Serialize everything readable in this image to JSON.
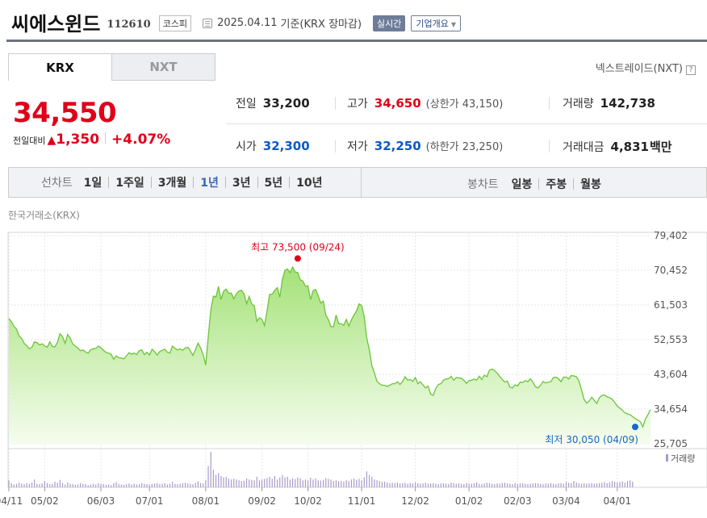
{
  "header": {
    "stock_name": "씨에스윈드",
    "stock_code": "112610",
    "market": "코스피",
    "date": "2025.04.11",
    "basis": "기준(KRX 장마감)",
    "realtime_label": "실시간",
    "company_label": "기업개요"
  },
  "tabs": [
    {
      "label": "KRX"
    },
    {
      "label": "NXT"
    }
  ],
  "nextrade_label": "넥스트레이드(NXT)",
  "quote": {
    "price": "34,550",
    "change_label": "전일대비",
    "change_amount": "1,350",
    "change_pct": "+4.07%",
    "prev_close_label": "전일",
    "prev_close": "33,200",
    "high_label": "고가",
    "high": "34,650",
    "upper_limit_label": "(상한가 43,150)",
    "volume_label": "거래량",
    "volume": "142,738",
    "open_label": "시가",
    "open": "32,300",
    "low_label": "저가",
    "low": "32,250",
    "lower_limit_label": "(하한가 23,250)",
    "amount_label": "거래대금",
    "amount": "4,831",
    "amount_unit": "백만"
  },
  "period_bar": {
    "line_label": "선차트",
    "periods": [
      "1일",
      "1주일",
      "3개월",
      "1년",
      "3년",
      "5년",
      "10년"
    ],
    "selected": "1년",
    "candle_label": "봉차트",
    "candles": [
      "일봉",
      "주봉",
      "월봉"
    ]
  },
  "chart_source": "한국거래소(KRX)",
  "chart_data": {
    "type": "area",
    "ylim": [
      25705,
      79402
    ],
    "y_ticks": [
      "79,402",
      "70,452",
      "61,503",
      "52,553",
      "43,604",
      "34,654",
      "25,705"
    ],
    "x_ticks": [
      {
        "label": "04/11",
        "i": 0
      },
      {
        "label": "05/02",
        "i": 14
      },
      {
        "label": "06/03",
        "i": 36
      },
      {
        "label": "07/01",
        "i": 55
      },
      {
        "label": "08/01",
        "i": 77
      },
      {
        "label": "09/02",
        "i": 99
      },
      {
        "label": "10/02",
        "i": 117
      },
      {
        "label": "11/01",
        "i": 138
      },
      {
        "label": "12/02",
        "i": 159
      },
      {
        "label": "01/02",
        "i": 180
      },
      {
        "label": "02/03",
        "i": 199
      },
      {
        "label": "03/04",
        "i": 218
      },
      {
        "label": "04/01",
        "i": 238
      }
    ],
    "prices": [
      58000,
      57200,
      56000,
      55300,
      53500,
      52900,
      51600,
      51000,
      50200,
      50600,
      52000,
      51800,
      51200,
      51500,
      51000,
      50600,
      52000,
      50800,
      50700,
      51900,
      54100,
      53300,
      51600,
      53900,
      53000,
      51400,
      50900,
      50400,
      49700,
      49900,
      49400,
      49100,
      50000,
      50200,
      50300,
      50900,
      50500,
      49800,
      49300,
      49100,
      48800,
      47500,
      48400,
      47900,
      47800,
      47600,
      48400,
      49200,
      48800,
      49100,
      48700,
      49700,
      49900,
      48700,
      49300,
      48600,
      50100,
      49500,
      48600,
      49500,
      49800,
      50100,
      49300,
      49100,
      50900,
      50300,
      49900,
      50200,
      49800,
      50400,
      50600,
      49700,
      48500,
      50000,
      51700,
      50400,
      48700,
      46000,
      53500,
      60200,
      63800,
      63600,
      66300,
      62900,
      65100,
      65600,
      64500,
      64600,
      63100,
      64400,
      65100,
      65300,
      64400,
      61800,
      63700,
      61800,
      61300,
      57300,
      58200,
      57800,
      56200,
      60000,
      64300,
      64300,
      65300,
      66000,
      63500,
      68100,
      70500,
      70800,
      69800,
      71300,
      70000,
      69900,
      68000,
      67700,
      66400,
      66400,
      62900,
      65200,
      65500,
      63900,
      62000,
      62500,
      58900,
      57700,
      55900,
      55900,
      58900,
      56700,
      56700,
      56300,
      57800,
      56100,
      57700,
      58900,
      60000,
      61800,
      61400,
      58500,
      53000,
      50000,
      45800,
      44000,
      41800,
      41200,
      40800,
      40800,
      40500,
      40800,
      41200,
      41200,
      41700,
      41000,
      41800,
      43000,
      42100,
      42300,
      41800,
      42800,
      41200,
      41700,
      40900,
      40100,
      40600,
      38500,
      38200,
      40000,
      41000,
      41200,
      42100,
      42400,
      42500,
      43100,
      42100,
      42800,
      42700,
      42600,
      42100,
      41300,
      42000,
      42100,
      42400,
      42100,
      43100,
      42300,
      43400,
      43000,
      44700,
      45000,
      44600,
      43900,
      43100,
      42300,
      41600,
      41900,
      40300,
      40100,
      40900,
      40600,
      41600,
      41500,
      42000,
      41700,
      42500,
      41600,
      40400,
      40100,
      40800,
      41800,
      41400,
      41600,
      41700,
      42800,
      42900,
      42500,
      41700,
      42900,
      42900,
      42400,
      43300,
      43200,
      43000,
      41900,
      39600,
      37200,
      36200,
      36700,
      37700,
      36900,
      36100,
      37600,
      38200,
      38300,
      37800,
      37600,
      37200,
      36400,
      35400,
      34900,
      34300,
      33700,
      33400,
      33200,
      32700,
      32200,
      31800,
      31400,
      30050,
      32100,
      33200,
      34550
    ],
    "high_marker": {
      "label": "최고 73,500 (09/24)",
      "value": 73500,
      "i": 113
    },
    "low_marker": {
      "label": "최저 30,050 (04/09)",
      "value": 30050,
      "i": 245
    },
    "volume_label": "거래량",
    "volumes": [
      0.2,
      0.12,
      0.08,
      0.1,
      0.13,
      0.11,
      0.09,
      0.12,
      0.1,
      0.14,
      0.22,
      0.1,
      0.09,
      0.11,
      0.18,
      0.12,
      0.09,
      0.1,
      0.16,
      0.13,
      0.21,
      0.12,
      0.08,
      0.14,
      0.1,
      0.09,
      0.07,
      0.08,
      0.12,
      0.1,
      0.09,
      0.06,
      0.08,
      0.1,
      0.08,
      0.12,
      0.1,
      0.09,
      0.07,
      0.08,
      0.06,
      0.12,
      0.15,
      0.1,
      0.08,
      0.07,
      0.09,
      0.11,
      0.08,
      0.1,
      0.08,
      0.09,
      0.12,
      0.1,
      0.09,
      0.08,
      0.1,
      0.11,
      0.12,
      0.09,
      0.1,
      0.12,
      0.08,
      0.1,
      0.16,
      0.1,
      0.09,
      0.1,
      0.12,
      0.13,
      0.11,
      0.1,
      0.09,
      0.13,
      0.17,
      0.12,
      0.11,
      0.2,
      0.6,
      1.0,
      0.5,
      0.35,
      0.4,
      0.32,
      0.28,
      0.3,
      0.25,
      0.22,
      0.24,
      0.22,
      0.2,
      0.18,
      0.19,
      0.25,
      0.22,
      0.21,
      0.2,
      0.3,
      0.2,
      0.22,
      0.24,
      0.26,
      0.3,
      0.24,
      0.32,
      0.22,
      0.28,
      0.35,
      0.28,
      0.3,
      0.22,
      0.26,
      0.23,
      0.28,
      0.25,
      0.2,
      0.22,
      0.2,
      0.27,
      0.22,
      0.25,
      0.2,
      0.19,
      0.21,
      0.26,
      0.24,
      0.22,
      0.18,
      0.2,
      0.17,
      0.18,
      0.16,
      0.2,
      0.18,
      0.22,
      0.25,
      0.21,
      0.24,
      0.2,
      0.28,
      0.45,
      0.35,
      0.3,
      0.22,
      0.2,
      0.18,
      0.15,
      0.16,
      0.14,
      0.12,
      0.13,
      0.12,
      0.14,
      0.11,
      0.12,
      0.13,
      0.1,
      0.12,
      0.11,
      0.14,
      0.12,
      0.1,
      0.11,
      0.13,
      0.1,
      0.11,
      0.12,
      0.1,
      0.09,
      0.11,
      0.12,
      0.1,
      0.09,
      0.13,
      0.12,
      0.1,
      0.11,
      0.1,
      0.09,
      0.12,
      0.11,
      0.1,
      0.12,
      0.14,
      0.1,
      0.09,
      0.11,
      0.13,
      0.12,
      0.1,
      0.09,
      0.11,
      0.1,
      0.12,
      0.13,
      0.11,
      0.1,
      0.09,
      0.12,
      0.1,
      0.11,
      0.12,
      0.1,
      0.09,
      0.1,
      0.11,
      0.12,
      0.11,
      0.1,
      0.09,
      0.11,
      0.1,
      0.12,
      0.1,
      0.09,
      0.11,
      0.12,
      0.1,
      0.15,
      0.13,
      0.12,
      0.18,
      0.14,
      0.11,
      0.1,
      0.12,
      0.1,
      0.11,
      0.12,
      0.1,
      0.11,
      0.12,
      0.13,
      0.15,
      0.12,
      0.14,
      0.18,
      0.16,
      0.14,
      0.15,
      0.17,
      0.13,
      0.18,
      0.2,
      0.16
    ]
  }
}
